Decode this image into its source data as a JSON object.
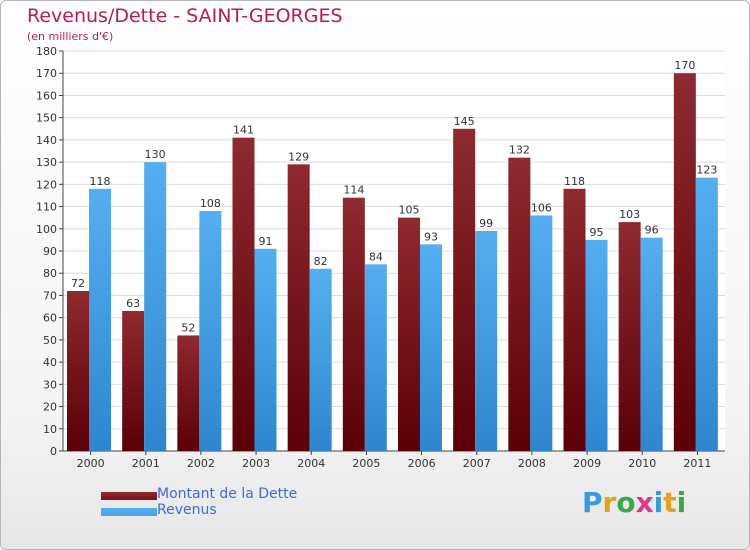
{
  "chart_data": {
    "type": "bar",
    "title": "Revenus/Dette - SAINT-GEORGES",
    "subtitle": "(en milliers d'€)",
    "categories": [
      "2000",
      "2001",
      "2002",
      "2003",
      "2004",
      "2005",
      "2006",
      "2007",
      "2008",
      "2009",
      "2010",
      "2011"
    ],
    "series": [
      {
        "name": "Montant de la Dette",
        "color": "#7a1218",
        "values": [
          72,
          63,
          52,
          141,
          129,
          114,
          105,
          145,
          132,
          118,
          103,
          170
        ]
      },
      {
        "name": "Revenus",
        "color": "#4aa3ea",
        "values": [
          118,
          130,
          108,
          91,
          82,
          84,
          93,
          99,
          106,
          95,
          96,
          123
        ]
      }
    ],
    "ylim": [
      0,
      180
    ],
    "yticks": [
      0,
      10,
      20,
      30,
      40,
      50,
      60,
      70,
      80,
      90,
      100,
      110,
      120,
      130,
      140,
      150,
      160,
      170,
      180
    ],
    "xlabel": "",
    "ylabel": "",
    "grid": true,
    "legend": "bottom-left"
  },
  "logo": {
    "letters": [
      "P",
      "r",
      "o",
      "x",
      "i",
      "t",
      "i"
    ],
    "colors": [
      "#3a9ad9",
      "#e8a020",
      "#3aa84a",
      "#d93a8a",
      "#3a9ad9",
      "#e8a020",
      "#3aa84a"
    ]
  }
}
